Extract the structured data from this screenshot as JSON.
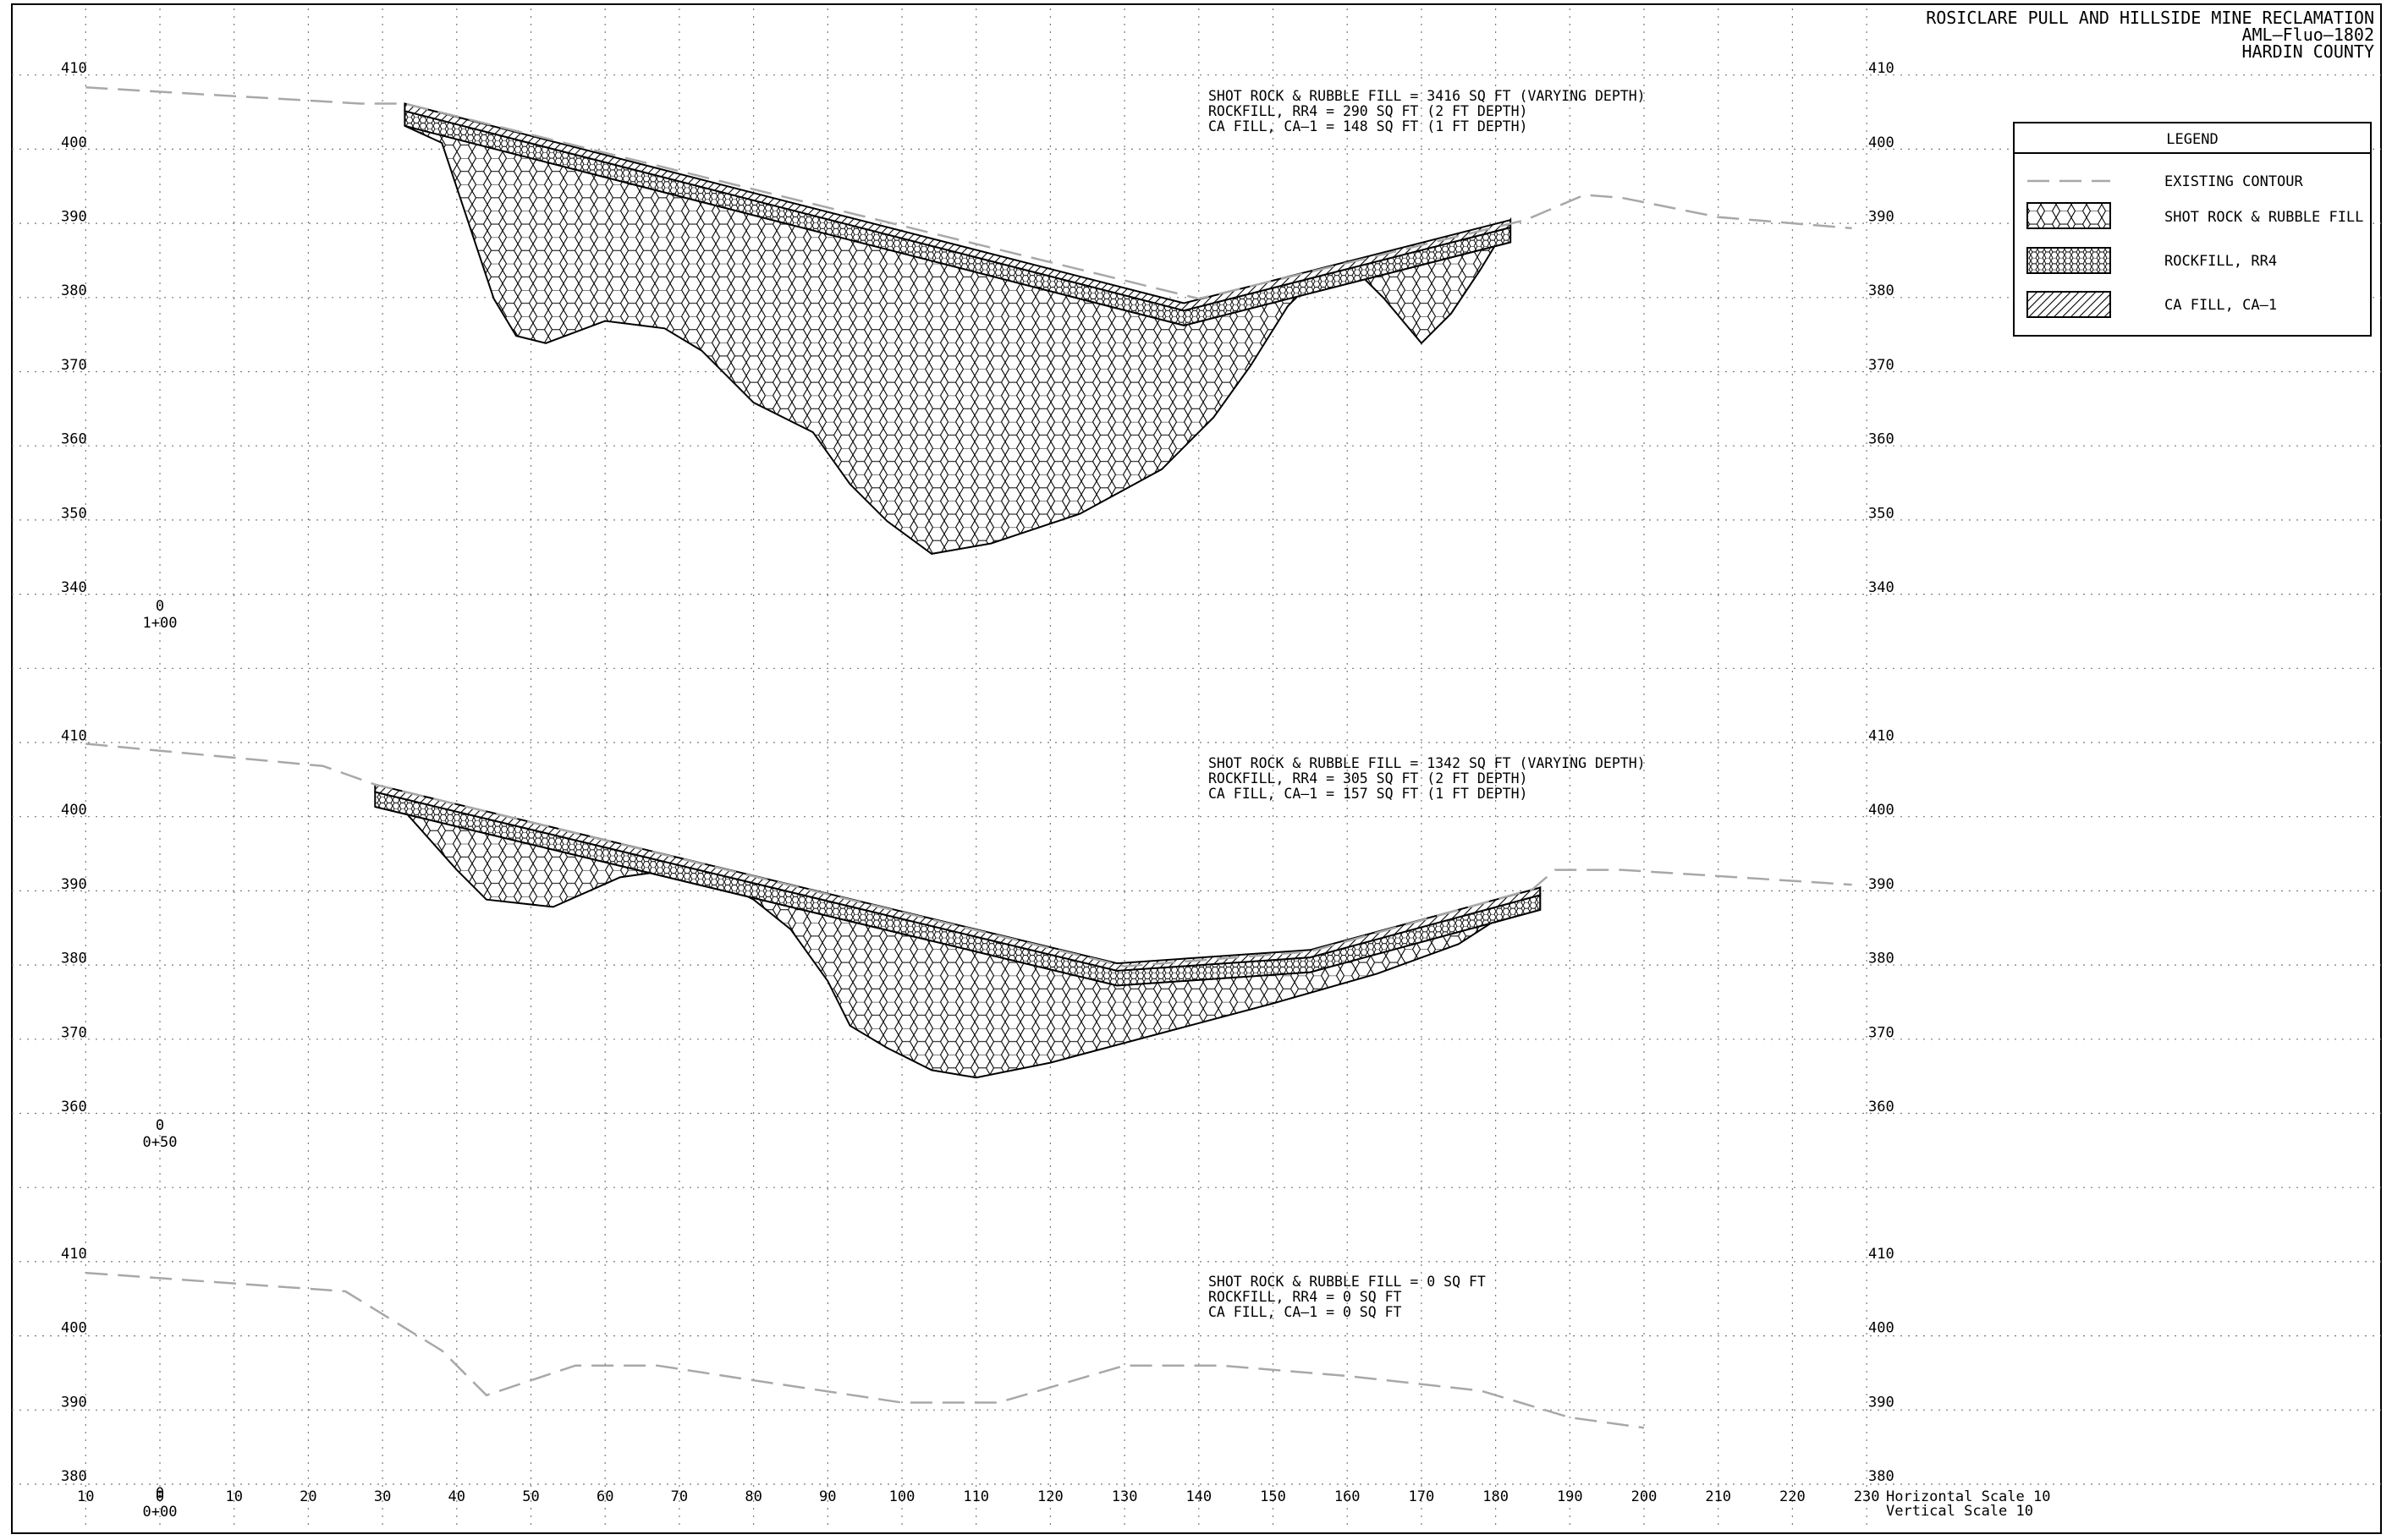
{
  "title_block": {
    "line1": "ROSICLARE PULL AND HILLSIDE MINE RECLAMATION",
    "line2": "AML–Fluo–1802",
    "line3": "HARDIN COUNTY"
  },
  "legend": {
    "title": "LEGEND",
    "items": [
      {
        "label": "EXISTING CONTOUR",
        "icon": "dashed-line-swatch"
      },
      {
        "label": "SHOT ROCK & RUBBLE FILL",
        "icon": "large-hex-hatch-swatch"
      },
      {
        "label": "ROCKFILL, RR4",
        "icon": "small-hex-hatch-swatch"
      },
      {
        "label": "CA FILL, CA–1",
        "icon": "diagonal-hatch-swatch"
      }
    ]
  },
  "x_axis": {
    "ticks": [
      "10",
      "0",
      "10",
      "20",
      "30",
      "40",
      "50",
      "60",
      "70",
      "80",
      "90",
      "100",
      "110",
      "120",
      "130",
      "140",
      "150",
      "160",
      "170",
      "180",
      "190",
      "200",
      "210",
      "220",
      "230"
    ]
  },
  "scale_note": {
    "horizontal": "Horizontal Scale 10",
    "vertical": "Vertical Scale 10"
  },
  "sections": [
    {
      "station_offset": "0",
      "station": "1+00",
      "elev_labels": [
        "410",
        "400",
        "390",
        "380",
        "370",
        "360",
        "350",
        "340"
      ],
      "elev_range": [
        340,
        410
      ],
      "notes": [
        "SHOT ROCK & RUBBLE FILL = 3416 SQ FT (VARYING DEPTH)",
        "ROCKFILL, RR4 = 290 SQ FT (2 FT DEPTH)",
        "CA FILL, CA–1 = 148 SQ FT (1 FT DEPTH)"
      ],
      "existing_contour": [
        [
          -10,
          408.5
        ],
        [
          27,
          406.3
        ],
        [
          33,
          406.3
        ],
        [
          140,
          380
        ],
        [
          184,
          390.6
        ],
        [
          192,
          394
        ],
        [
          197,
          393.6
        ],
        [
          210,
          391
        ],
        [
          228,
          389.5
        ]
      ],
      "finished_surface": [
        [
          33,
          406.3
        ],
        [
          138,
          379.4
        ],
        [
          182,
          390.6
        ]
      ],
      "fill_bottom": [
        [
          38,
          401
        ],
        [
          45,
          380
        ],
        [
          48,
          375
        ],
        [
          52,
          374
        ],
        [
          60,
          377
        ],
        [
          68,
          376
        ],
        [
          73,
          373
        ],
        [
          80,
          366
        ],
        [
          88,
          362
        ],
        [
          93,
          355
        ],
        [
          98,
          350
        ],
        [
          104,
          345.6
        ],
        [
          112,
          347
        ],
        [
          124,
          351
        ],
        [
          135,
          357
        ],
        [
          142,
          364
        ],
        [
          147,
          371
        ],
        [
          152,
          379
        ],
        [
          157,
          384
        ],
        [
          160,
          385
        ],
        [
          165,
          380
        ],
        [
          170,
          374
        ],
        [
          174,
          378
        ],
        [
          178,
          384
        ],
        [
          182,
          390.6
        ]
      ]
    },
    {
      "station_offset": "0",
      "station": "0+50",
      "elev_labels": [
        "410",
        "400",
        "390",
        "380",
        "370",
        "360"
      ],
      "elev_range": [
        360,
        410
      ],
      "notes": [
        "SHOT ROCK & RUBBLE FILL = 1342 SQ FT (VARYING DEPTH)",
        "ROCKFILL, RR4 = 305 SQ FT (2 FT DEPTH)",
        "CA FILL, CA–1 = 157 SQ FT (1 FT DEPTH)"
      ],
      "existing_contour": [
        [
          -10,
          410
        ],
        [
          22,
          407
        ],
        [
          29,
          404.5
        ],
        [
          130,
          380
        ],
        [
          155,
          382
        ],
        [
          185,
          390.4
        ],
        [
          188,
          393
        ],
        [
          197,
          393
        ],
        [
          228,
          391
        ]
      ],
      "finished_surface": [
        [
          29,
          404.5
        ],
        [
          129,
          380.4
        ],
        [
          155,
          382.2
        ],
        [
          186,
          390.6
        ]
      ],
      "fill_bottom": [
        [
          32,
          402
        ],
        [
          40,
          393
        ],
        [
          44,
          389
        ],
        [
          53,
          388
        ],
        [
          62,
          392
        ],
        [
          69,
          393
        ],
        [
          74,
          392
        ],
        [
          80,
          389
        ],
        [
          85,
          385
        ],
        [
          90,
          378
        ],
        [
          93,
          372
        ],
        [
          98,
          369
        ],
        [
          104,
          366
        ],
        [
          110,
          365
        ],
        [
          120,
          367
        ],
        [
          135,
          371
        ],
        [
          150,
          375
        ],
        [
          164,
          379
        ],
        [
          175,
          383
        ],
        [
          182,
          387.5
        ],
        [
          186,
          390.6
        ]
      ]
    },
    {
      "station_offset": "0",
      "station": "0+00",
      "elev_labels": [
        "410",
        "400",
        "390",
        "380"
      ],
      "elev_range": [
        380,
        410
      ],
      "notes": [
        "SHOT ROCK & RUBBLE FILL = 0 SQ FT",
        "ROCKFILL, RR4 = 0 SQ FT",
        "CA FILL, CA–1 = 0 SQ FT"
      ],
      "existing_contour": [
        [
          -10,
          408.5
        ],
        [
          25,
          406
        ],
        [
          38,
          398
        ],
        [
          44,
          392
        ],
        [
          56,
          396
        ],
        [
          67,
          396
        ],
        [
          80,
          394
        ],
        [
          100,
          391
        ],
        [
          113,
          391
        ],
        [
          130,
          396
        ],
        [
          143,
          396
        ],
        [
          160,
          394.6
        ],
        [
          178,
          392.6
        ],
        [
          190,
          389
        ],
        [
          200,
          387.6
        ]
      ]
    }
  ]
}
